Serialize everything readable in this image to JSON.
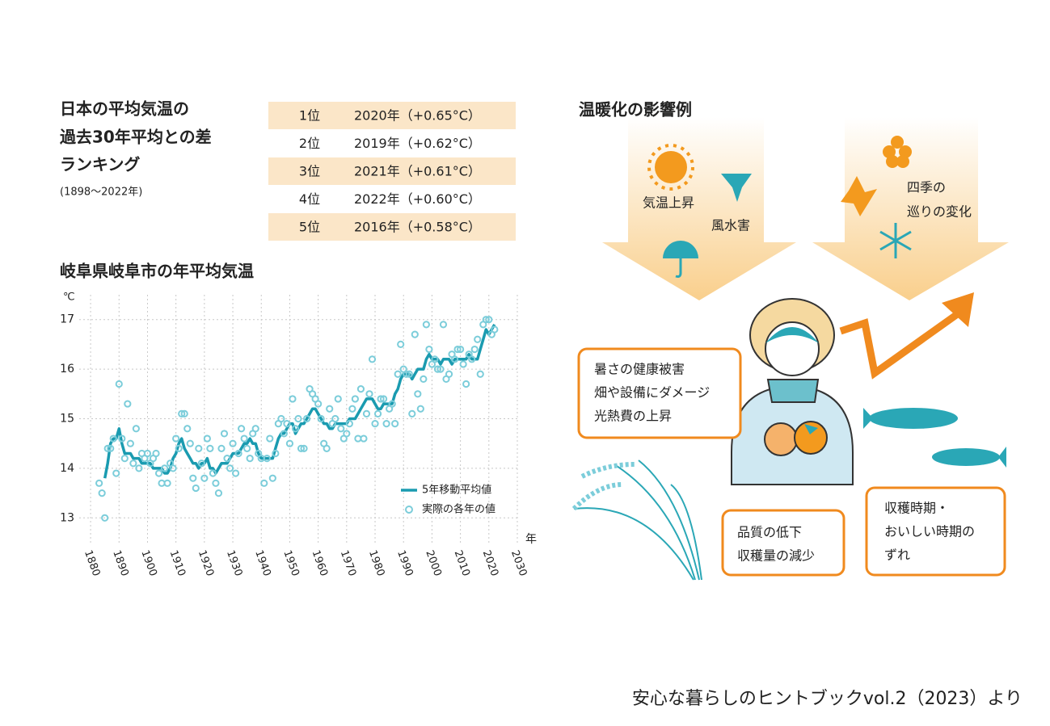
{
  "ranking": {
    "title": [
      "日本の平均気温の",
      "過去30年平均との差",
      "ランキング"
    ],
    "period": "(1898〜2022年)",
    "rows": [
      [
        "1位",
        "2020年（+0.65°C）"
      ],
      [
        "2位",
        "2019年（+0.62°C）"
      ],
      [
        "3位",
        "2021年（+0.61°C）"
      ],
      [
        "4位",
        "2022年（+0.60°C）"
      ],
      [
        "5位",
        "2016年（+0.58°C）"
      ]
    ]
  },
  "chart_data": {
    "type": "line",
    "title": "岐阜県岐阜市の年平均気温",
    "y_unit": "℃",
    "x_unit": "年",
    "xlim": [
      1876,
      2030
    ],
    "xticks": [
      1880,
      1890,
      1900,
      1910,
      1920,
      1930,
      1940,
      1950,
      1960,
      1970,
      1980,
      1990,
      2000,
      2010,
      2020,
      2030
    ],
    "ylim": [
      12.5,
      17.5
    ],
    "yticks": [
      13,
      14,
      15,
      16,
      17
    ],
    "grid": true,
    "legend": "lower right",
    "series": [
      {
        "name": "5年移動平均値",
        "color": "#1a9bb0",
        "mode": "line",
        "x": [
          1885,
          1886,
          1887,
          1888,
          1889,
          1890,
          1891,
          1892,
          1893,
          1894,
          1895,
          1896,
          1897,
          1898,
          1899,
          1900,
          1901,
          1902,
          1903,
          1904,
          1905,
          1906,
          1907,
          1908,
          1909,
          1910,
          1911,
          1912,
          1913,
          1914,
          1915,
          1916,
          1917,
          1918,
          1919,
          1920,
          1921,
          1922,
          1923,
          1924,
          1925,
          1926,
          1927,
          1928,
          1929,
          1930,
          1931,
          1932,
          1933,
          1934,
          1935,
          1936,
          1937,
          1938,
          1939,
          1940,
          1941,
          1942,
          1943,
          1944,
          1945,
          1946,
          1947,
          1948,
          1949,
          1950,
          1951,
          1952,
          1953,
          1954,
          1955,
          1956,
          1957,
          1958,
          1959,
          1960,
          1961,
          1962,
          1963,
          1964,
          1965,
          1966,
          1967,
          1968,
          1969,
          1970,
          1971,
          1972,
          1973,
          1974,
          1975,
          1976,
          1977,
          1978,
          1979,
          1980,
          1981,
          1982,
          1983,
          1984,
          1985,
          1986,
          1987,
          1988,
          1989,
          1990,
          1991,
          1992,
          1993,
          1994,
          1995,
          1996,
          1997,
          1998,
          1999,
          2000,
          2001,
          2002,
          2003,
          2004,
          2005,
          2006,
          2007,
          2008,
          2009,
          2010,
          2011,
          2012,
          2013,
          2014,
          2015,
          2016,
          2017,
          2018,
          2019,
          2020,
          2021,
          2022
        ],
        "values": [
          13.8,
          14.1,
          14.5,
          14.6,
          14.6,
          14.8,
          14.5,
          14.3,
          14.3,
          14.3,
          14.2,
          14.2,
          14.2,
          14.1,
          14.1,
          14.1,
          14.1,
          14.0,
          14.0,
          14.0,
          14.0,
          13.9,
          13.9,
          14.0,
          14.2,
          14.3,
          14.5,
          14.6,
          14.4,
          14.3,
          14.2,
          14.1,
          14.1,
          14.0,
          14.1,
          14.1,
          14.2,
          14.0,
          14.0,
          13.9,
          14.0,
          14.1,
          14.1,
          14.1,
          14.2,
          14.3,
          14.3,
          14.3,
          14.4,
          14.5,
          14.5,
          14.6,
          14.5,
          14.5,
          14.3,
          14.2,
          14.2,
          14.2,
          14.2,
          14.2,
          14.4,
          14.6,
          14.7,
          14.7,
          14.8,
          14.9,
          14.9,
          14.7,
          14.8,
          14.9,
          14.9,
          15.0,
          15.1,
          15.2,
          15.2,
          15.1,
          15.0,
          14.9,
          14.9,
          14.8,
          14.8,
          14.9,
          14.9,
          14.9,
          14.9,
          14.9,
          15.0,
          15.0,
          15.0,
          15.1,
          15.2,
          15.3,
          15.4,
          15.4,
          15.4,
          15.3,
          15.2,
          15.2,
          15.3,
          15.3,
          15.3,
          15.3,
          15.5,
          15.6,
          15.8,
          15.9,
          15.9,
          15.9,
          15.8,
          15.9,
          16.0,
          16.0,
          16.0,
          16.2,
          16.3,
          16.2,
          16.2,
          16.2,
          16.1,
          16.2,
          16.2,
          16.2,
          16.1,
          16.2,
          16.2,
          16.2,
          16.2,
          16.2,
          16.3,
          16.2,
          16.2,
          16.2,
          16.4,
          16.6,
          16.8,
          16.7,
          16.8,
          16.9
        ]
      },
      {
        "name": "実際の各年の値",
        "color": "#7ccdda",
        "mode": "markers",
        "x": [
          1883,
          1884,
          1885,
          1886,
          1887,
          1888,
          1889,
          1890,
          1891,
          1892,
          1893,
          1894,
          1895,
          1896,
          1897,
          1898,
          1899,
          1900,
          1901,
          1902,
          1903,
          1904,
          1905,
          1906,
          1907,
          1908,
          1909,
          1910,
          1911,
          1912,
          1913,
          1914,
          1915,
          1916,
          1917,
          1918,
          1919,
          1920,
          1921,
          1922,
          1923,
          1924,
          1925,
          1926,
          1927,
          1928,
          1929,
          1930,
          1931,
          1932,
          1933,
          1934,
          1935,
          1936,
          1937,
          1938,
          1939,
          1940,
          1941,
          1942,
          1943,
          1944,
          1945,
          1946,
          1947,
          1948,
          1949,
          1950,
          1951,
          1952,
          1953,
          1954,
          1955,
          1956,
          1957,
          1958,
          1959,
          1960,
          1961,
          1962,
          1963,
          1964,
          1965,
          1966,
          1967,
          1968,
          1969,
          1970,
          1971,
          1972,
          1973,
          1974,
          1975,
          1976,
          1977,
          1978,
          1979,
          1980,
          1981,
          1982,
          1983,
          1984,
          1985,
          1986,
          1987,
          1988,
          1989,
          1990,
          1991,
          1992,
          1993,
          1994,
          1995,
          1996,
          1997,
          1998,
          1999,
          2000,
          2001,
          2002,
          2003,
          2004,
          2005,
          2006,
          2007,
          2008,
          2009,
          2010,
          2011,
          2012,
          2013,
          2014,
          2015,
          2016,
          2017,
          2018,
          2019,
          2020,
          2021,
          2022
        ],
        "values": [
          13.7,
          13.5,
          13.0,
          14.4,
          14.4,
          14.6,
          13.9,
          15.7,
          14.6,
          14.2,
          15.3,
          14.5,
          14.1,
          14.8,
          14.0,
          14.3,
          14.2,
          14.3,
          14.1,
          14.2,
          14.3,
          13.9,
          13.7,
          14.0,
          13.7,
          14.1,
          14.0,
          14.6,
          14.4,
          15.1,
          15.1,
          14.8,
          14.5,
          13.8,
          13.6,
          14.4,
          14.1,
          13.8,
          14.6,
          14.4,
          13.9,
          13.7,
          13.5,
          14.4,
          14.7,
          14.2,
          14.0,
          14.5,
          13.9,
          14.3,
          14.8,
          14.6,
          14.4,
          14.2,
          14.7,
          14.8,
          14.3,
          14.2,
          13.7,
          14.2,
          14.6,
          13.8,
          14.3,
          14.9,
          15.0,
          14.7,
          14.9,
          14.5,
          15.4,
          14.8,
          15.0,
          14.4,
          14.4,
          15.0,
          15.6,
          15.5,
          15.4,
          15.3,
          15.0,
          14.5,
          14.4,
          15.2,
          14.9,
          15.0,
          15.4,
          14.8,
          14.6,
          14.7,
          14.9,
          15.2,
          15.4,
          14.6,
          15.6,
          14.6,
          15.1,
          15.5,
          16.2,
          14.9,
          15.1,
          15.4,
          15.4,
          14.9,
          15.2,
          15.3,
          14.9,
          15.9,
          16.5,
          16.0,
          15.9,
          15.9,
          15.1,
          16.7,
          15.5,
          15.2,
          15.8,
          16.9,
          16.4,
          16.1,
          16.2,
          16.0,
          16.0,
          16.9,
          15.8,
          15.9,
          16.3,
          16.2,
          16.4,
          16.4,
          16.1,
          15.7,
          16.3,
          16.2,
          16.4,
          16.6,
          15.9,
          16.9,
          17.0,
          17.0,
          16.7,
          16.8
        ]
      }
    ]
  },
  "impacts": {
    "title": "温暖化の影響例",
    "temperature": "気温上昇",
    "storm": "風水害",
    "seasons": [
      "四季の",
      "巡りの変化"
    ],
    "boxes": [
      [
        "暑さの健康被害",
        "畑や設備にダメージ",
        "光熱費の上昇"
      ],
      [
        "品質の低下",
        "収穫量の減少"
      ],
      [
        "収穫時期・",
        "おいしい時期の",
        "ずれ"
      ]
    ]
  },
  "source": "安心な暮らしのヒントブックvol.2（2023）より"
}
